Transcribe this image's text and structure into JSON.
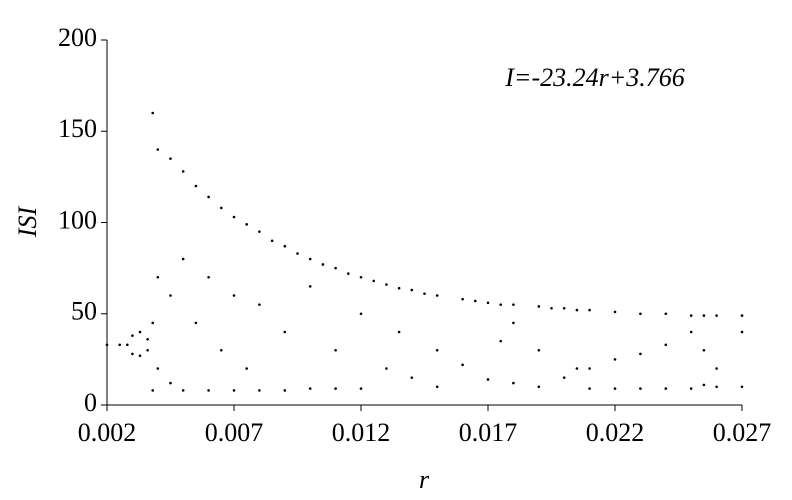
{
  "chart_data": {
    "type": "scatter",
    "annotation": "I=-23.24r+3.766",
    "xlabel": "r",
    "ylabel": "ISI",
    "color": "#000000",
    "xlim": [
      0.002,
      0.027
    ],
    "xticks": [
      0.002,
      0.007,
      0.012,
      0.017,
      0.022,
      0.027
    ],
    "ylim": [
      0,
      200
    ],
    "yticks": [
      0,
      50,
      100,
      150,
      200
    ],
    "x": [
      0.002,
      0.0025,
      0.0028,
      0.003,
      0.003,
      0.0033,
      0.0033,
      0.0036,
      0.0036,
      0.0038,
      0.0038,
      0.0038,
      0.004,
      0.004,
      0.004,
      0.0045,
      0.0045,
      0.0045,
      0.005,
      0.005,
      0.005,
      0.0055,
      0.0055,
      0.006,
      0.006,
      0.006,
      0.0065,
      0.0065,
      0.007,
      0.007,
      0.007,
      0.0075,
      0.0075,
      0.008,
      0.008,
      0.008,
      0.0085,
      0.009,
      0.009,
      0.009,
      0.0095,
      0.01,
      0.01,
      0.01,
      0.0105,
      0.011,
      0.011,
      0.011,
      0.0115,
      0.012,
      0.012,
      0.012,
      0.0125,
      0.013,
      0.013,
      0.0135,
      0.0135,
      0.014,
      0.014,
      0.0145,
      0.015,
      0.015,
      0.015,
      0.016,
      0.016,
      0.0165,
      0.017,
      0.017,
      0.0175,
      0.0175,
      0.018,
      0.018,
      0.018,
      0.019,
      0.019,
      0.019,
      0.0195,
      0.02,
      0.02,
      0.0205,
      0.0205,
      0.021,
      0.021,
      0.021,
      0.022,
      0.022,
      0.022,
      0.023,
      0.023,
      0.023,
      0.024,
      0.024,
      0.024,
      0.025,
      0.025,
      0.025,
      0.0255,
      0.0255,
      0.0255,
      0.026,
      0.026,
      0.026,
      0.027,
      0.027,
      0.027
    ],
    "values": [
      33,
      33,
      33,
      38,
      28,
      40,
      27,
      36,
      30,
      160,
      45,
      8,
      140,
      70,
      20,
      135,
      60,
      12,
      128,
      80,
      8,
      120,
      45,
      114,
      70,
      8,
      108,
      30,
      103,
      60,
      8,
      99,
      20,
      95,
      55,
      8,
      90,
      87,
      40,
      8,
      83,
      80,
      65,
      9,
      77,
      75,
      30,
      9,
      72,
      70,
      50,
      9,
      68,
      66,
      20,
      64,
      40,
      63,
      15,
      61,
      60,
      30,
      10,
      58,
      22,
      57,
      56,
      14,
      55,
      35,
      55,
      45,
      12,
      54,
      30,
      10,
      53,
      53,
      15,
      52,
      20,
      52,
      20,
      9,
      51,
      25,
      9,
      50,
      28,
      9,
      50,
      33,
      9,
      49,
      40,
      9,
      49,
      30,
      11,
      49,
      20,
      10,
      49,
      40,
      10
    ]
  }
}
